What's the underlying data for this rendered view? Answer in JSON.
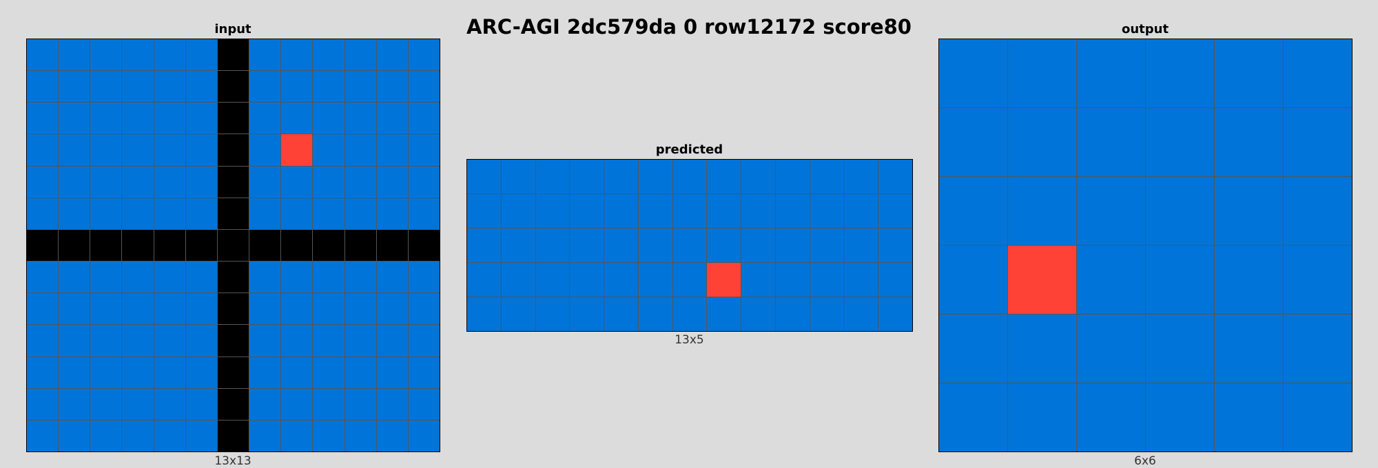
{
  "title": "ARC-AGI 2dc579da 0 row12172 score80",
  "colors": {
    "0": "#000000",
    "1": "#0074d9",
    "2": "#ff4136",
    "background": "#dcdcdc",
    "gridline": "#555555"
  },
  "panels": {
    "input": {
      "title": "input",
      "size_label": "13x13",
      "rows": 13,
      "cols": 13,
      "grid": [
        [
          1,
          1,
          1,
          1,
          1,
          1,
          0,
          1,
          1,
          1,
          1,
          1,
          1
        ],
        [
          1,
          1,
          1,
          1,
          1,
          1,
          0,
          1,
          1,
          1,
          1,
          1,
          1
        ],
        [
          1,
          1,
          1,
          1,
          1,
          1,
          0,
          1,
          1,
          1,
          1,
          1,
          1
        ],
        [
          1,
          1,
          1,
          1,
          1,
          1,
          0,
          1,
          2,
          1,
          1,
          1,
          1
        ],
        [
          1,
          1,
          1,
          1,
          1,
          1,
          0,
          1,
          1,
          1,
          1,
          1,
          1
        ],
        [
          1,
          1,
          1,
          1,
          1,
          1,
          0,
          1,
          1,
          1,
          1,
          1,
          1
        ],
        [
          0,
          0,
          0,
          0,
          0,
          0,
          0,
          0,
          0,
          0,
          0,
          0,
          0
        ],
        [
          1,
          1,
          1,
          1,
          1,
          1,
          0,
          1,
          1,
          1,
          1,
          1,
          1
        ],
        [
          1,
          1,
          1,
          1,
          1,
          1,
          0,
          1,
          1,
          1,
          1,
          1,
          1
        ],
        [
          1,
          1,
          1,
          1,
          1,
          1,
          0,
          1,
          1,
          1,
          1,
          1,
          1
        ],
        [
          1,
          1,
          1,
          1,
          1,
          1,
          0,
          1,
          1,
          1,
          1,
          1,
          1
        ],
        [
          1,
          1,
          1,
          1,
          1,
          1,
          0,
          1,
          1,
          1,
          1,
          1,
          1
        ],
        [
          1,
          1,
          1,
          1,
          1,
          1,
          0,
          1,
          1,
          1,
          1,
          1,
          1
        ]
      ]
    },
    "predicted": {
      "title": "predicted",
      "size_label": "13x5",
      "rows": 5,
      "cols": 13,
      "grid": [
        [
          1,
          1,
          1,
          1,
          1,
          1,
          1,
          1,
          1,
          1,
          1,
          1,
          1
        ],
        [
          1,
          1,
          1,
          1,
          1,
          1,
          1,
          1,
          1,
          1,
          1,
          1,
          1
        ],
        [
          1,
          1,
          1,
          1,
          1,
          1,
          1,
          1,
          1,
          1,
          1,
          1,
          1
        ],
        [
          1,
          1,
          1,
          1,
          1,
          1,
          1,
          2,
          1,
          1,
          1,
          1,
          1
        ],
        [
          1,
          1,
          1,
          1,
          1,
          1,
          1,
          1,
          1,
          1,
          1,
          1,
          1
        ]
      ]
    },
    "output": {
      "title": "output",
      "size_label": "6x6",
      "rows": 6,
      "cols": 6,
      "grid": [
        [
          1,
          1,
          1,
          1,
          1,
          1
        ],
        [
          1,
          1,
          1,
          1,
          1,
          1
        ],
        [
          1,
          1,
          1,
          1,
          1,
          1
        ],
        [
          1,
          2,
          1,
          1,
          1,
          1
        ],
        [
          1,
          1,
          1,
          1,
          1,
          1
        ],
        [
          1,
          1,
          1,
          1,
          1,
          1
        ]
      ]
    }
  }
}
